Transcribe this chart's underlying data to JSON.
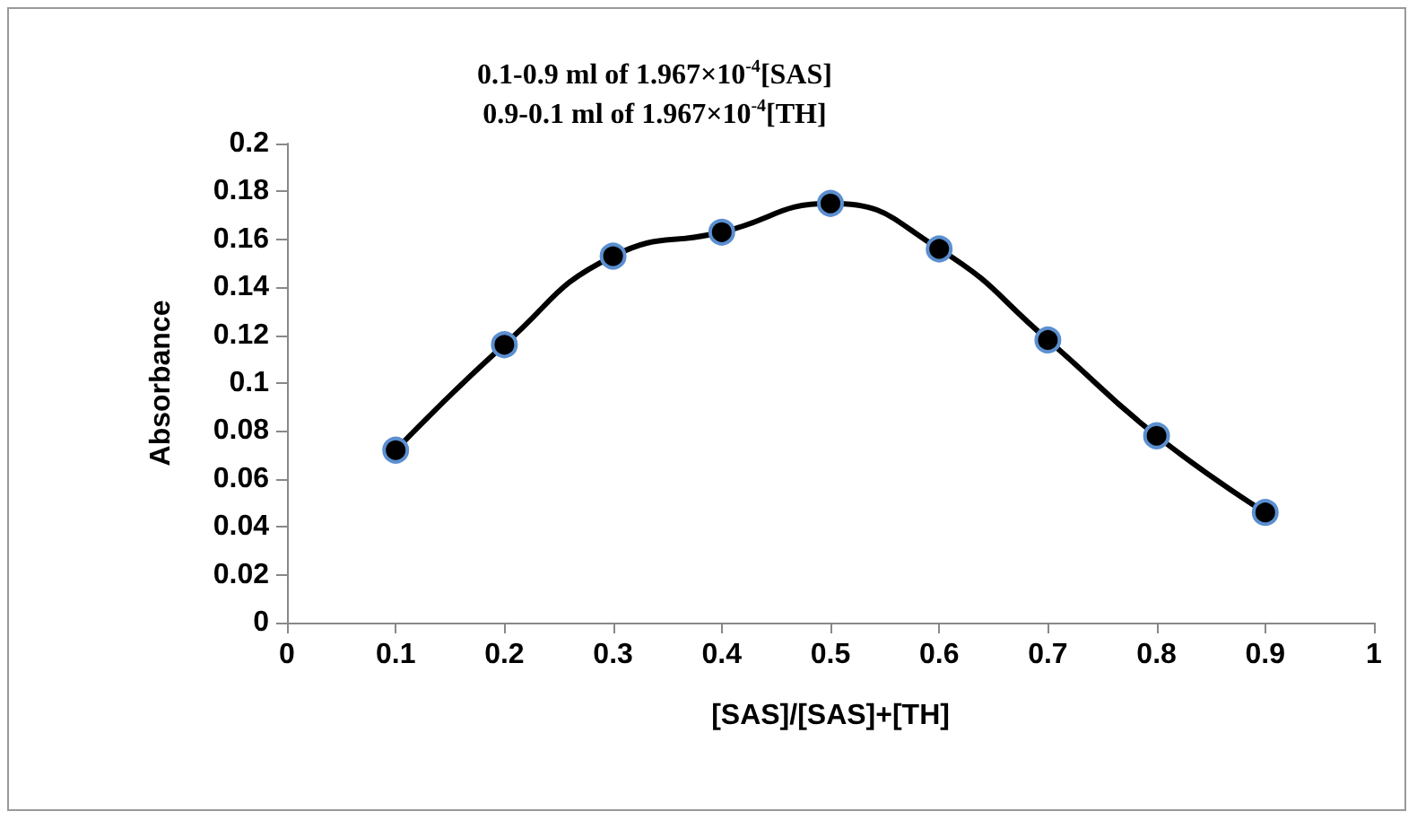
{
  "chart_data": {
    "type": "line",
    "title": "0.1-0.9 ml of 1.967×10$^{-4}$[SAS]",
    "subtitle": "0.9-0.1 ml of 1.967×10$^{-4}$[TH]",
    "xlabel": "[SAS]/[SAS]+[TH]",
    "ylabel": "Absorbance",
    "x": [
      0.1,
      0.2,
      0.3,
      0.4,
      0.5,
      0.6,
      0.7,
      0.8,
      0.9
    ],
    "series": [
      {
        "color": "#000000",
        "values": [
          0.072,
          0.116,
          0.153,
          0.163,
          0.175,
          0.156,
          0.118,
          0.078,
          0.046
        ]
      }
    ],
    "xlim": [
      0,
      1
    ],
    "xticks": [
      0,
      0.1,
      0.2,
      0.3,
      0.4,
      0.5,
      0.6,
      0.7,
      0.8,
      0.9,
      1
    ],
    "ylim": [
      0,
      0.2
    ],
    "yticks": [
      0,
      0.02,
      0.04,
      0.06,
      0.08,
      0.1,
      0.12,
      0.14,
      0.16,
      0.18,
      0.2
    ],
    "grid": false,
    "marker": "circle",
    "line_style": "solid"
  }
}
